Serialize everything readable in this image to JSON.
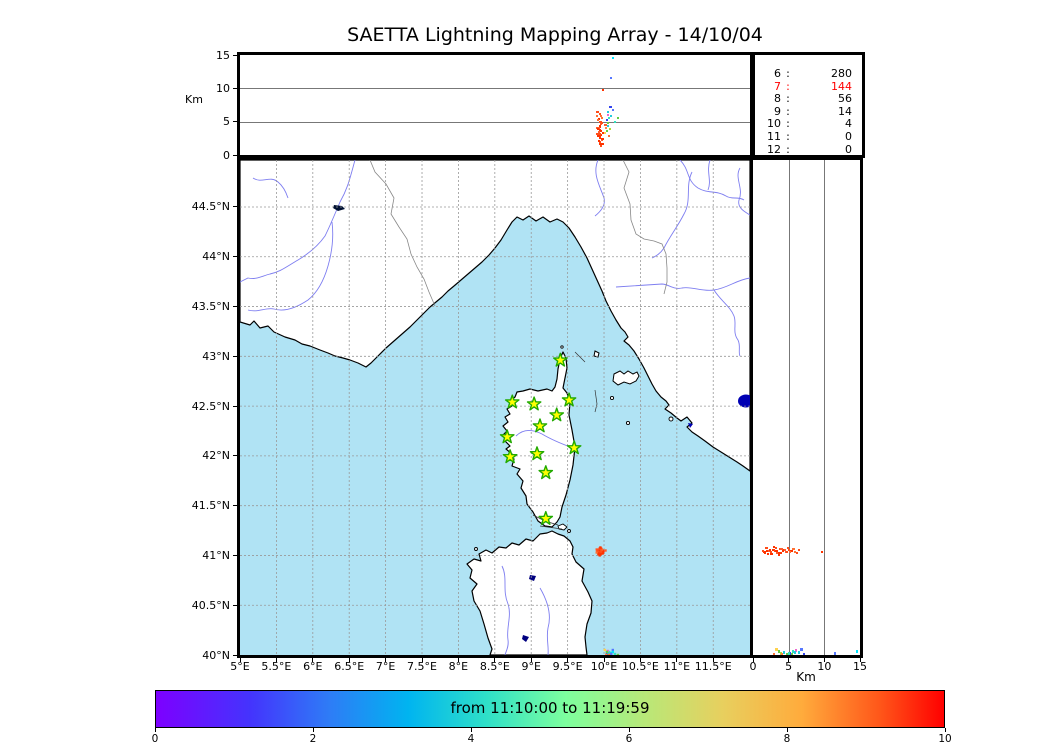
{
  "title": "SAETTA Lightning Mapping Array - 14/10/04",
  "colorbar": {
    "label": "from 11:10:00 to 11:19:59",
    "ticks": [
      "0",
      "2",
      "4",
      "6",
      "8",
      "10"
    ]
  },
  "stats_panel": {
    "rows": [
      {
        "level": "6",
        "count": "280",
        "highlight": false
      },
      {
        "level": "7",
        "count": "144",
        "highlight": true
      },
      {
        "level": "8",
        "count": "56",
        "highlight": false
      },
      {
        "level": "9",
        "count": "14",
        "highlight": false
      },
      {
        "level": "10",
        "count": "4",
        "highlight": false
      },
      {
        "level": "11",
        "count": "0",
        "highlight": false
      },
      {
        "level": "12",
        "count": "0",
        "highlight": false
      }
    ],
    "highlight_color": "#ff0000"
  },
  "axes": {
    "alt_ticks": [
      "15",
      "10",
      "5",
      "0"
    ],
    "alt_tick_values": [
      15,
      10,
      5,
      0
    ],
    "alt_label": "Km",
    "lat_ticks": [
      "44.5°N",
      "44°N",
      "43.5°N",
      "43°N",
      "42.5°N",
      "42°N",
      "41.5°N",
      "41°N",
      "40.5°N",
      "40°N"
    ],
    "lat_tick_values": [
      44.5,
      44,
      43.5,
      43,
      42.5,
      42,
      41.5,
      41,
      40.5,
      40
    ],
    "lon_ticks": [
      "5°E",
      "5.5°E",
      "6°E",
      "6.5°E",
      "7°E",
      "7.5°E",
      "8°E",
      "8.5°E",
      "9°E",
      "9.5°E",
      "10°E",
      "10.5°E",
      "11°E",
      "11.5°E"
    ],
    "lon_tick_values": [
      5,
      5.5,
      6,
      6.5,
      7,
      7.5,
      8,
      8.5,
      9,
      9.5,
      10,
      10.5,
      11,
      11.5
    ],
    "km_ticks": [
      "0",
      "5",
      "10",
      "15"
    ],
    "km_tick_values": [
      0,
      5,
      10,
      15
    ],
    "km_label": "Km"
  },
  "colors": {
    "sea": "#b0e3f4",
    "land": "#ffffff",
    "coast": "#000000",
    "river": "#7e7ef0",
    "border": "#888888",
    "grid": "#999999",
    "lake": "#0000b4",
    "station_fill": "#ffff00",
    "station_stroke": "#22aa00"
  },
  "chart_data": {
    "type": "scatter",
    "title": "SAETTA Lightning Mapping Array - 14/10/04",
    "time_window": {
      "from": "11:10:00",
      "to": "11:19:59",
      "colorbar_range": [
        0,
        10
      ]
    },
    "map": {
      "lon_range": [
        5,
        12.005
      ],
      "lat_range": [
        40,
        44.972
      ],
      "alt_range_km": [
        0,
        15
      ]
    },
    "counts_by_altitude_km": [
      [
        6,
        280
      ],
      [
        7,
        144
      ],
      [
        8,
        56
      ],
      [
        9,
        14
      ],
      [
        10,
        4
      ],
      [
        11,
        0
      ],
      [
        12,
        0
      ]
    ],
    "stations_lon_lat": [
      [
        9.4,
        42.96
      ],
      [
        8.74,
        42.54
      ],
      [
        9.04,
        42.52
      ],
      [
        9.52,
        42.56
      ],
      [
        9.35,
        42.41
      ],
      [
        9.12,
        42.3
      ],
      [
        8.67,
        42.19
      ],
      [
        9.59,
        42.08
      ],
      [
        8.71,
        41.99
      ],
      [
        9.08,
        42.02
      ],
      [
        9.2,
        41.83
      ],
      [
        9.2,
        41.37
      ]
    ],
    "lightning_sources_lon_lat_altkm_color": [
      [
        9.95,
        41.04,
        2.0,
        "#ff3300"
      ],
      [
        9.94,
        41.03,
        2.5,
        "#ff4d1a"
      ],
      [
        9.96,
        41.05,
        3.0,
        "#ff3300"
      ],
      [
        9.93,
        41.02,
        3.4,
        "#ff5c2e"
      ],
      [
        9.95,
        41.06,
        3.8,
        "#ff4d1a"
      ],
      [
        9.94,
        41.04,
        4.2,
        "#ff3300"
      ],
      [
        9.96,
        41.03,
        4.6,
        "#ff5c2e"
      ],
      [
        9.95,
        41.05,
        5.0,
        "#ff4d1a"
      ],
      [
        9.93,
        41.04,
        5.4,
        "#ff3300"
      ],
      [
        9.96,
        41.06,
        5.8,
        "#ff7033"
      ],
      [
        9.94,
        41.02,
        6.2,
        "#ff4d1a"
      ],
      [
        9.95,
        41.03,
        1.6,
        "#ff3300"
      ],
      [
        9.97,
        41.04,
        2.2,
        "#ff5c2e"
      ],
      [
        9.92,
        41.05,
        2.8,
        "#ff3300"
      ],
      [
        9.95,
        41.07,
        3.2,
        "#ff4d1a"
      ],
      [
        9.96,
        41.02,
        3.6,
        "#ff3300"
      ],
      [
        9.93,
        41.06,
        4.0,
        "#ff5c2e"
      ],
      [
        9.94,
        41.05,
        4.4,
        "#ff3300"
      ],
      [
        9.97,
        41.03,
        4.8,
        "#ff4d1a"
      ],
      [
        9.92,
        41.03,
        5.2,
        "#ff7033"
      ],
      [
        9.98,
        41.05,
        2.4,
        "#ff3300"
      ],
      [
        9.91,
        41.04,
        3.1,
        "#ff4d1a"
      ],
      [
        9.95,
        41.01,
        2.6,
        "#ff3300"
      ],
      [
        9.9,
        41.06,
        4.1,
        "#ff5c2e"
      ],
      [
        9.99,
        41.04,
        3.3,
        "#ff3300"
      ],
      [
        9.94,
        41.07,
        1.9,
        "#ff4d1a"
      ],
      [
        9.97,
        41.06,
        5.6,
        "#ff7033"
      ],
      [
        9.93,
        41.01,
        2.1,
        "#ff3300"
      ],
      [
        9.96,
        41.07,
        4.9,
        "#ff4d1a"
      ],
      [
        9.92,
        41.02,
        3.9,
        "#ff3300"
      ],
      [
        10.02,
        41.05,
        4.5,
        "#ff5c2e"
      ],
      [
        9.95,
        41.08,
        2.9,
        "#ff3300"
      ],
      [
        9.9,
        41.03,
        5.9,
        "#ff7033"
      ],
      [
        9.98,
        41.02,
        1.7,
        "#ff3300"
      ],
      [
        9.91,
        41.05,
        6.4,
        "#ff4d1a"
      ],
      [
        9.94,
        41.0,
        3.7,
        "#ff3300"
      ],
      [
        9.99,
        41.03,
        9.7,
        "#ff3300"
      ],
      [
        9.96,
        41.04,
        1.4,
        "#ff4d1a"
      ],
      [
        10.05,
        40.02,
        4.4,
        "#22ccdd"
      ],
      [
        10.06,
        40.0,
        4.8,
        "#66cc44"
      ],
      [
        10.04,
        40.01,
        5.2,
        "#3344ee"
      ],
      [
        10.07,
        40.03,
        5.6,
        "#33e0c0"
      ],
      [
        10.05,
        40.04,
        6.0,
        "#ee66cc"
      ],
      [
        10.08,
        40.01,
        3.9,
        "#aadd33"
      ],
      [
        10.03,
        40.0,
        4.1,
        "#ff8040"
      ],
      [
        10.06,
        40.02,
        6.5,
        "#22ccdd"
      ],
      [
        10.09,
        40.0,
        7.2,
        "#3344ee"
      ],
      [
        10.04,
        40.03,
        3.6,
        "#66cc44"
      ],
      [
        10.1,
        40.02,
        5.9,
        "#22ccdd"
      ],
      [
        10.12,
        40.05,
        6.8,
        "#5577ff"
      ],
      [
        10.07,
        40.0,
        2.9,
        "#ff7033"
      ],
      [
        10.15,
        40.01,
        5.0,
        "#33e0c0"
      ],
      [
        10.19,
        40.0,
        5.5,
        "#66cc44"
      ],
      [
        10.12,
        40.03,
        14.6,
        "#00e5ff"
      ],
      [
        10.1,
        40.01,
        11.5,
        "#5577ff"
      ],
      [
        10.01,
        40.05,
        3.3,
        "#ffd24d"
      ]
    ]
  }
}
